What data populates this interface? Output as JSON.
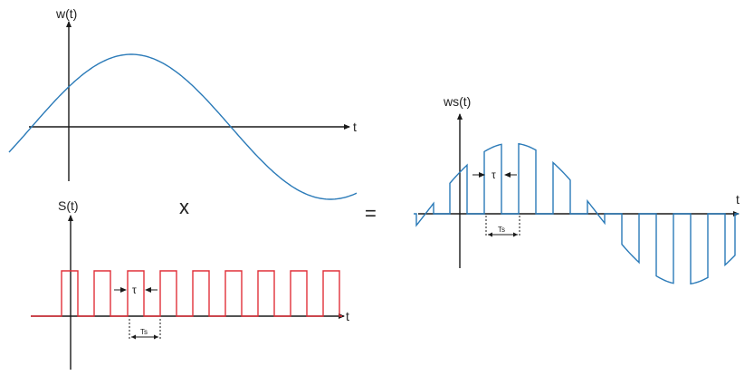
{
  "top_panel": {
    "y_label": "w(t)",
    "x_label": "t"
  },
  "bottom_panel": {
    "y_label": "S(t)",
    "x_label": "t",
    "tau_label": "τ",
    "ts_label": "Ts"
  },
  "operators": {
    "multiply": "x",
    "equals": "="
  },
  "right_panel": {
    "y_label": "ws(t)",
    "x_label": "t",
    "tau_label": "τ",
    "ts_label": "Ts"
  },
  "colors": {
    "sine": "#2a7ab8",
    "pulse": "#e0303a",
    "axes": "#1a1a1a"
  }
}
